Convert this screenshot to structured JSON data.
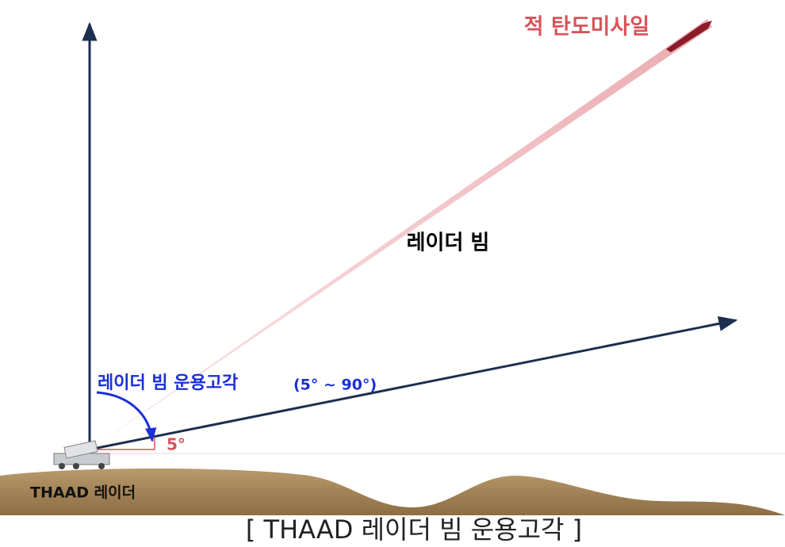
{
  "missile_label": "적 탄도미사일",
  "beam_label": "레이더 빔",
  "elevation_label": "레이더 빔 운용고각",
  "elevation_range": "(5° ~ 90°)",
  "min_angle_label": "5°",
  "radar_label": "THAAD 레이더",
  "caption": "[ THAAD 레이더 빔 운용고각 ]"
}
